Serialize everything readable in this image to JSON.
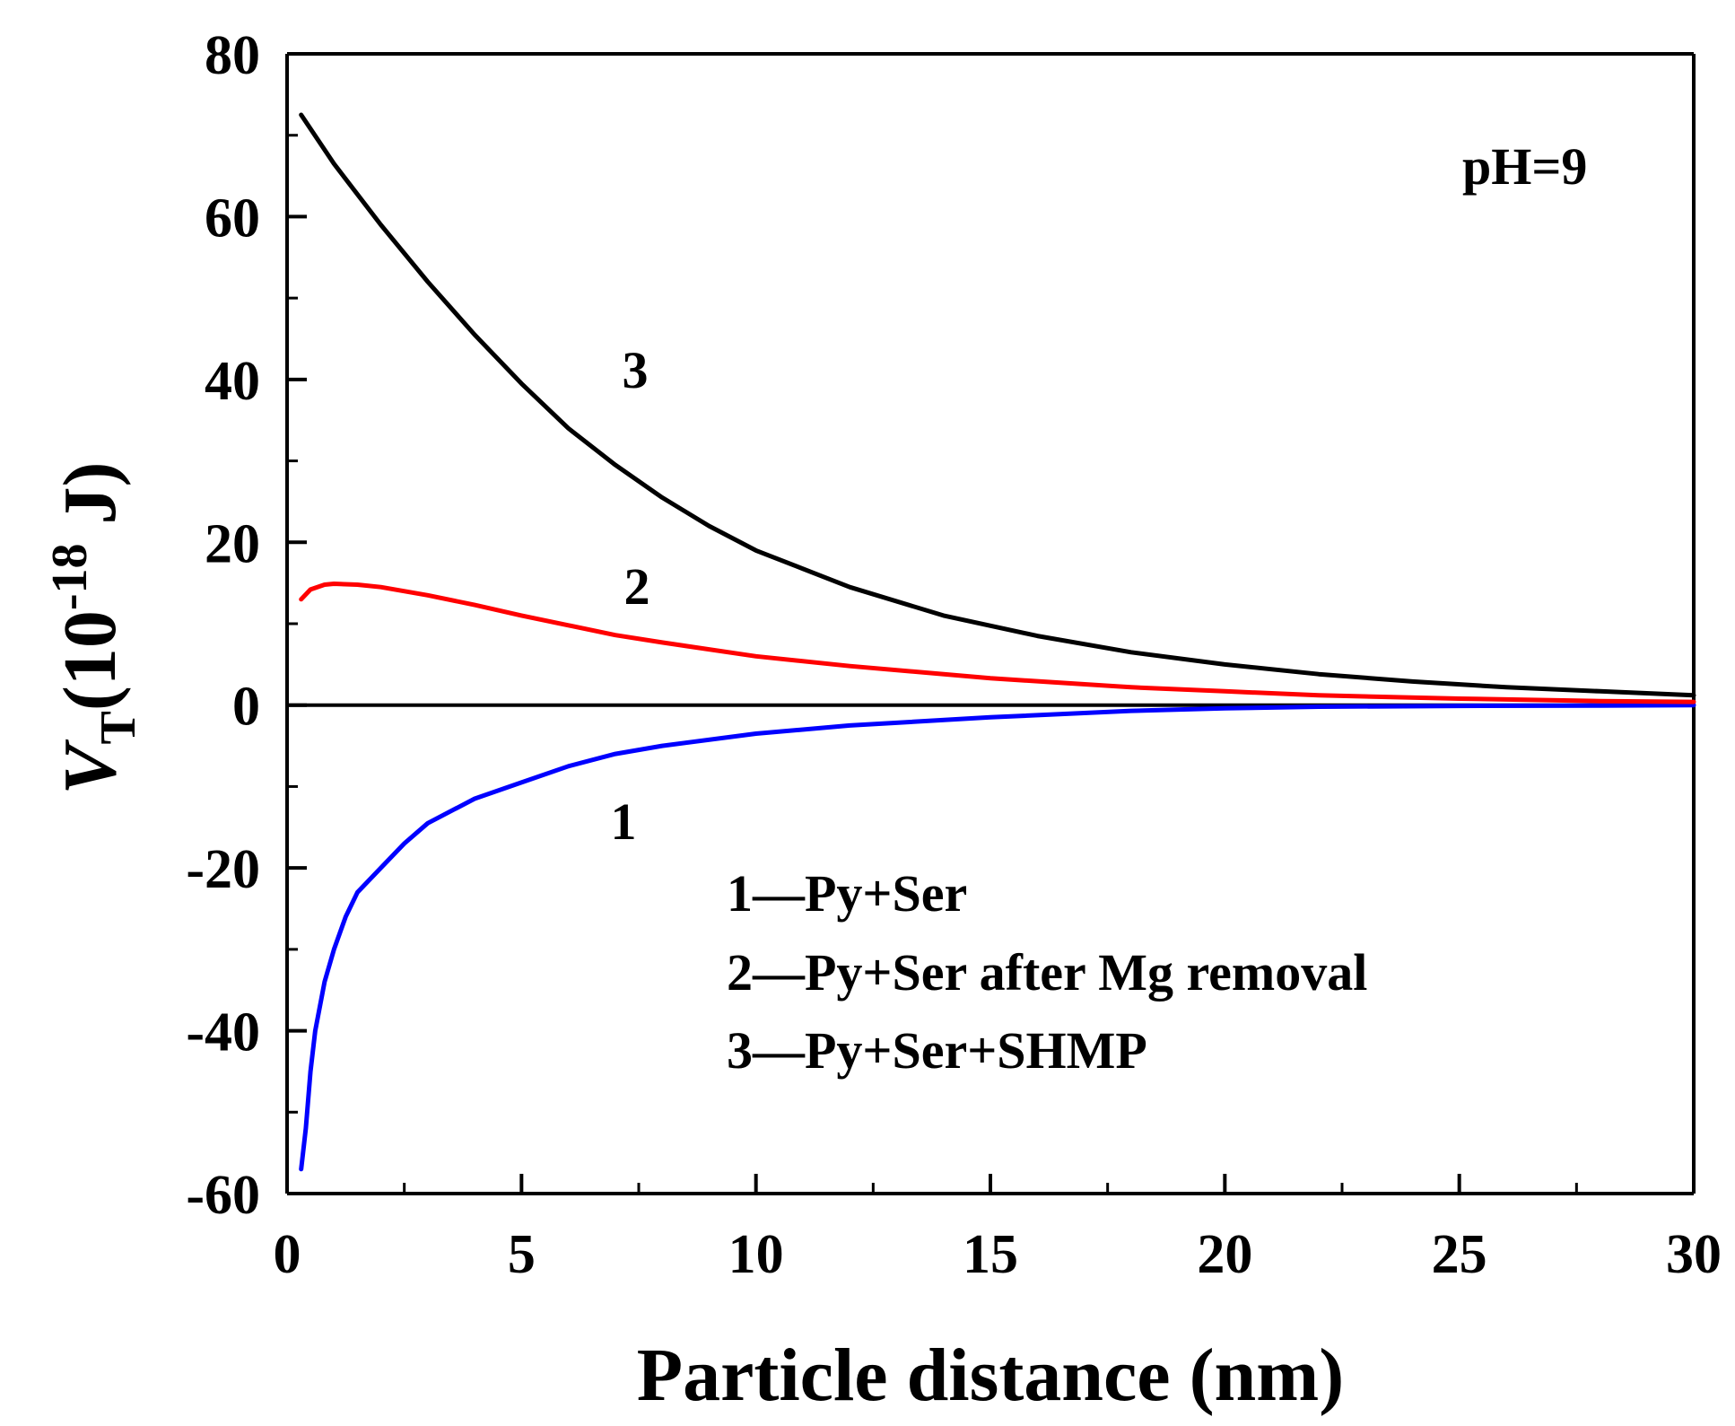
{
  "chart_data": {
    "type": "line",
    "title": "",
    "xlabel": "Particle distance (nm)",
    "ylabel": {
      "main": "V",
      "subscript": "T",
      "unit_open": "(10",
      "exponent": "-18",
      "unit_close": " J)"
    },
    "xlim": [
      0,
      30
    ],
    "ylim": [
      -60,
      80
    ],
    "x_ticks": [
      0,
      5,
      10,
      15,
      20,
      25,
      30
    ],
    "y_ticks": [
      -60,
      -40,
      -20,
      0,
      20,
      40,
      60,
      80
    ],
    "annotation": "pH=9",
    "series": [
      {
        "name": "Py+Ser",
        "label": "1",
        "legend": "1—Py+Ser",
        "color": "#0000ff",
        "x": [
          0.3,
          0.4,
          0.5,
          0.6,
          0.8,
          1.0,
          1.25,
          1.5,
          2,
          2.5,
          3,
          4,
          5,
          6,
          7,
          8,
          10,
          12,
          15,
          18,
          20,
          22,
          25,
          28,
          30
        ],
        "y": [
          -57,
          -52,
          -45,
          -40,
          -34,
          -30,
          -26,
          -23,
          -20,
          -17,
          -14.5,
          -11.5,
          -9.5,
          -7.5,
          -6,
          -5,
          -3.5,
          -2.5,
          -1.5,
          -0.7,
          -0.4,
          -0.2,
          -0.1,
          -0.05,
          0
        ]
      },
      {
        "name": "Py+Ser after Mg removal",
        "label": "2",
        "legend": "2—Py+Ser after Mg removal",
        "color": "#ff0000",
        "x": [
          0.3,
          0.5,
          0.8,
          1.0,
          1.5,
          2,
          3,
          4,
          5,
          6,
          7,
          8,
          10,
          12,
          15,
          18,
          20,
          22,
          25,
          28,
          30
        ],
        "y": [
          13,
          14.2,
          14.8,
          14.9,
          14.8,
          14.5,
          13.5,
          12.3,
          11,
          9.8,
          8.6,
          7.7,
          6,
          4.8,
          3.3,
          2.2,
          1.7,
          1.2,
          0.8,
          0.5,
          0.4
        ]
      },
      {
        "name": "Py+Ser+SHMP",
        "label": "3",
        "legend": "3—Py+Ser+SHMP",
        "color": "#000000",
        "x": [
          0.3,
          1,
          2,
          3,
          4,
          5,
          6,
          7,
          8,
          9,
          10,
          12,
          14,
          16,
          18,
          20,
          22,
          24,
          26,
          28,
          30
        ],
        "y": [
          72.5,
          66.5,
          59,
          52,
          45.5,
          39.5,
          34,
          29.5,
          25.5,
          22,
          19,
          14.5,
          11,
          8.5,
          6.5,
          5,
          3.8,
          2.9,
          2.2,
          1.7,
          1.2
        ]
      }
    ],
    "legend_position": "center-bottom",
    "grid": false
  }
}
